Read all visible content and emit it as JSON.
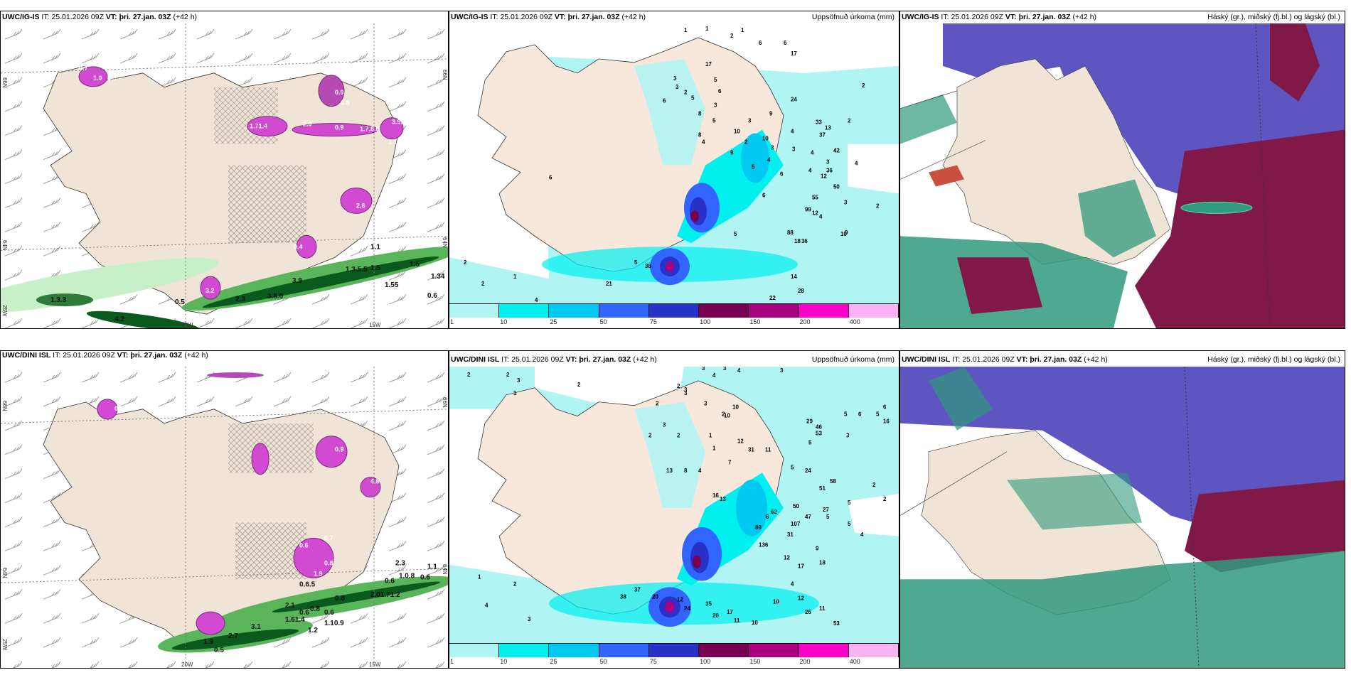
{
  "rows": [
    {
      "model": "UWC/IG-IS",
      "it_label": "IT:",
      "it_value": "25.01.2026 09Z",
      "vt_label": "VT:",
      "vt_value": "þri. 27.jan. 03Z",
      "lead": "(+42 h)",
      "lead_wrap_a": "(+42",
      "lead_wrap_b": "h)"
    },
    {
      "model": "UWC/DINI ISL",
      "it_label": "IT:",
      "it_value": "25.01.2026 09Z",
      "vt_label": "VT:",
      "vt_value": "þri. 27.jan. 03Z",
      "lead": "(+42 h)",
      "lead_wrap_a": "(+42",
      "lead_wrap_b": "h)"
    }
  ],
  "panels": {
    "wind_precip": {
      "axis_labels": {
        "lat_66": "66N",
        "lat_64": "64N",
        "lon_25": "25W",
        "lon_20": "20W",
        "lon_15": "15W"
      },
      "top_values_green": [
        "1.3.3",
        "4.2",
        "0.5",
        "2.3",
        "3.8.0",
        "3.9",
        "1.1",
        "1.5",
        "1.3.5.5",
        "1.5",
        "1.55",
        "0.6",
        "1.34"
      ],
      "top_values_magenta": [
        "0.7",
        "1.0",
        "3.5",
        "1.71.4",
        "2.0",
        "0.9",
        "1.7.8.6",
        "3.93",
        "0.9",
        "0.8",
        "1.1",
        "2.6",
        "0.4",
        "3.2"
      ],
      "bottom_values_green": [
        "2.3",
        "1.1",
        "0.6",
        "2.1",
        "0.6",
        "0.8",
        "3.1",
        "2.7",
        "1.9",
        "0.5",
        "1.61.4",
        "1.2",
        "1.10.9",
        "1.0.8",
        "0.6",
        "2.01.71.2",
        "0.8",
        "0.6",
        "0.6.5"
      ],
      "bottom_values_magenta": [
        "0.6",
        "0.7",
        "0.9",
        "4.8",
        "1.9",
        "0.8",
        "0.7"
      ]
    },
    "precip": {
      "title_right": "Uppsöfnuð úrkoma (mm)",
      "colorbar": {
        "ticks": [
          "1",
          "10",
          "25",
          "50",
          "75",
          "100",
          "150",
          "200",
          "400"
        ],
        "colors": [
          "#b0f4f4",
          "#00f0f0",
          "#00c8f0",
          "#3264ff",
          "#2832c8",
          "#780050",
          "#aa0080",
          "#ff00c8",
          "#f8b4f0"
        ]
      },
      "top_values": [
        "1",
        "1",
        "2",
        "1",
        "6",
        "6",
        "17",
        "3",
        "3",
        "2",
        "5",
        "6",
        "8",
        "17",
        "5",
        "6",
        "3",
        "5",
        "10",
        "3",
        "9",
        "24",
        "4",
        "4",
        "3",
        "6",
        "8",
        "9",
        "2",
        "5",
        "10",
        "3",
        "4",
        "33",
        "13",
        "37",
        "4",
        "3",
        "42",
        "36",
        "12",
        "50",
        "55",
        "3",
        "12",
        "9",
        "4",
        "99",
        "88",
        "36",
        "2",
        "5",
        "6",
        "18",
        "10",
        "14",
        "22",
        "28",
        "2",
        "2",
        "1",
        "4",
        "3",
        "11",
        "5",
        "21",
        "6",
        "2",
        "2",
        "4",
        "4",
        "38"
      ],
      "bottom_values": [
        "2",
        "2",
        "3",
        "1",
        "2",
        "3",
        "3",
        "3",
        "2",
        "3",
        "5",
        "3",
        "2",
        "3",
        "2",
        "2",
        "6",
        "5",
        "6",
        "16",
        "3",
        "2",
        "10",
        "31",
        "4",
        "4",
        "10",
        "11",
        "29",
        "3",
        "12",
        "1",
        "1",
        "46",
        "53",
        "5",
        "7",
        "4",
        "8",
        "13",
        "5",
        "5",
        "58",
        "2",
        "24",
        "51",
        "2",
        "13",
        "16",
        "50",
        "27",
        "6",
        "62",
        "47",
        "5",
        "5",
        "107",
        "89",
        "31",
        "4",
        "136",
        "9",
        "12",
        "17",
        "18",
        "1",
        "2",
        "4",
        "3",
        "38",
        "37",
        "20",
        "12",
        "24",
        "35",
        "20",
        "17",
        "11",
        "10",
        "10",
        "12",
        "26",
        "11",
        "53",
        "4",
        "6"
      ]
    },
    "clouds": {
      "title_right": "Háský (gr.), miðský (fj.bl.) og lágský (bl.)"
    }
  },
  "colors": {
    "land": "#f0e4d6",
    "sea": "#ffffff",
    "precip_light": "#b0f4f4",
    "green_light": "#c8f0c8",
    "green_mid": "#5ab45a",
    "green_dark": "#0a5a1e",
    "magenta": "#d24ad2",
    "cloud_high": "#2f9a7c",
    "cloud_mid": "#5f55c0",
    "cloud_low": "#801848"
  }
}
